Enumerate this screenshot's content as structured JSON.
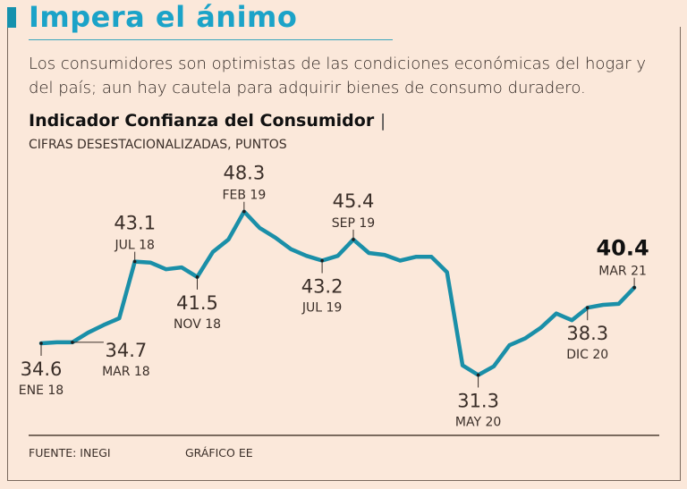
{
  "header": {
    "title": "Impera el ánimo",
    "subtitle": "Los consumidores son optimistas de las condiciones económicas del hogar y del país; aun hay cautela para adquirir bienes de consumo duradero."
  },
  "footer": {
    "source": "FUENTE: INEGI",
    "credit": "GRÁFICO EE"
  },
  "colors": {
    "line": "#1a8fa8",
    "title": "#1ba3c8",
    "background": "#fbe8da"
  },
  "chart_data": {
    "type": "line",
    "title": "Indicador Confianza del Consumidor",
    "title_separator": "|",
    "subtitle": "CIFRAS DESESTACIONALIZADAS, PUNTOS",
    "x_start": "ENE 18",
    "x_end": "MAR 21",
    "frequency": "monthly",
    "values": [
      34.6,
      34.7,
      34.7,
      35.7,
      36.5,
      37.2,
      43.1,
      43.0,
      42.3,
      42.5,
      41.5,
      44.1,
      45.4,
      48.3,
      46.6,
      45.6,
      44.4,
      43.7,
      43.2,
      43.7,
      45.4,
      44.0,
      43.8,
      43.2,
      43.6,
      43.6,
      42.0,
      32.3,
      31.3,
      32.2,
      34.4,
      35.1,
      36.2,
      37.7,
      37.0,
      38.3,
      38.6,
      38.7,
      40.4
    ],
    "ylim": [
      30,
      49
    ],
    "grid": false,
    "annotations": [
      {
        "index": 0,
        "value": "34.6",
        "label": "ENE 18",
        "position": "below"
      },
      {
        "index": 2,
        "value": "34.7",
        "label": "MAR 18",
        "position": "right"
      },
      {
        "index": 6,
        "value": "43.1",
        "label": "JUL 18",
        "position": "above"
      },
      {
        "index": 10,
        "value": "41.5",
        "label": "NOV 18",
        "position": "below"
      },
      {
        "index": 13,
        "value": "48.3",
        "label": "FEB 19",
        "position": "above"
      },
      {
        "index": 18,
        "value": "43.2",
        "label": "JUL 19",
        "position": "below"
      },
      {
        "index": 20,
        "value": "45.4",
        "label": "SEP 19",
        "position": "above"
      },
      {
        "index": 28,
        "value": "31.3",
        "label": "MAY 20",
        "position": "below"
      },
      {
        "index": 35,
        "value": "38.3",
        "label": "DIC 20",
        "position": "below"
      },
      {
        "index": 38,
        "value": "40.4",
        "label": "MAR 21",
        "position": "above-left",
        "bold": true
      }
    ]
  }
}
